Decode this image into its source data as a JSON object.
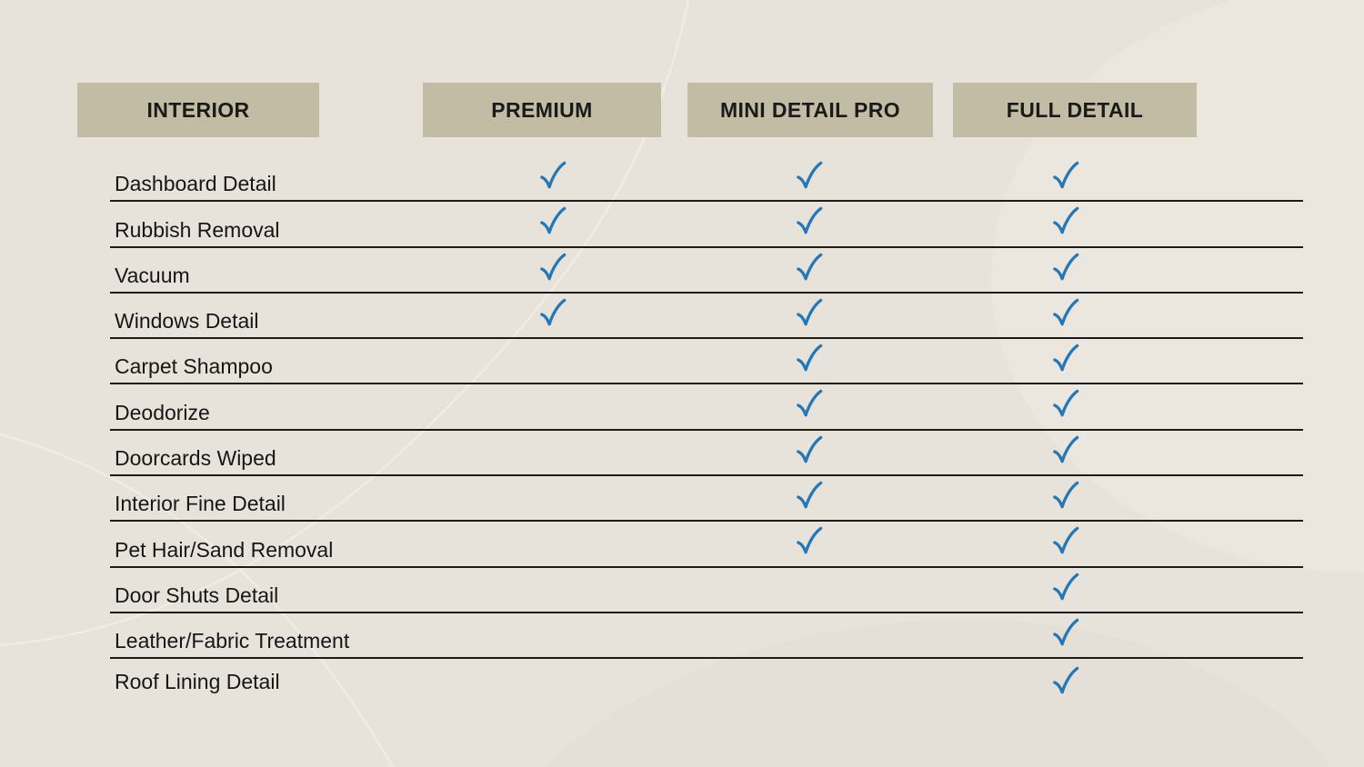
{
  "chart_data": {
    "type": "table",
    "columns": [
      "INTERIOR",
      "PREMIUM",
      "MINI DETAIL PRO",
      "FULL DETAIL"
    ],
    "rows": [
      {
        "feature": "Dashboard Detail",
        "premium": true,
        "mini_detail_pro": true,
        "full_detail": true
      },
      {
        "feature": "Rubbish Removal",
        "premium": true,
        "mini_detail_pro": true,
        "full_detail": true
      },
      {
        "feature": "Vacuum",
        "premium": true,
        "mini_detail_pro": true,
        "full_detail": true
      },
      {
        "feature": "Windows Detail",
        "premium": true,
        "mini_detail_pro": true,
        "full_detail": true
      },
      {
        "feature": "Carpet Shampoo",
        "premium": false,
        "mini_detail_pro": true,
        "full_detail": true
      },
      {
        "feature": "Deodorize",
        "premium": false,
        "mini_detail_pro": true,
        "full_detail": true
      },
      {
        "feature": "Doorcards Wiped",
        "premium": false,
        "mini_detail_pro": true,
        "full_detail": true
      },
      {
        "feature": "Interior Fine Detail",
        "premium": false,
        "mini_detail_pro": true,
        "full_detail": true
      },
      {
        "feature": "Pet Hair/Sand Removal",
        "premium": false,
        "mini_detail_pro": true,
        "full_detail": true
      },
      {
        "feature": "Door Shuts Detail",
        "premium": false,
        "mini_detail_pro": false,
        "full_detail": true
      },
      {
        "feature": "Leather/Fabric Treatment",
        "premium": false,
        "mini_detail_pro": false,
        "full_detail": true
      },
      {
        "feature": "Roof Lining Detail",
        "premium": false,
        "mini_detail_pro": false,
        "full_detail": true
      }
    ],
    "check_symbol": "✓",
    "grid": "horizontal-lines",
    "legend_position": "none"
  },
  "icons": {
    "check": {
      "name": "check-icon",
      "glyph": "✓"
    }
  },
  "colors": {
    "background": "#E7E3DA",
    "background_blob_light": "#EBE7DE",
    "background_blob_dark": "#E3DFD5",
    "background_curve": "#F1EDE5",
    "header_fill": "#C2BCA4",
    "header_text": "#1A1A1A",
    "row_text": "#161616",
    "row_line": "#1D1B19",
    "check": "#2478B7"
  }
}
